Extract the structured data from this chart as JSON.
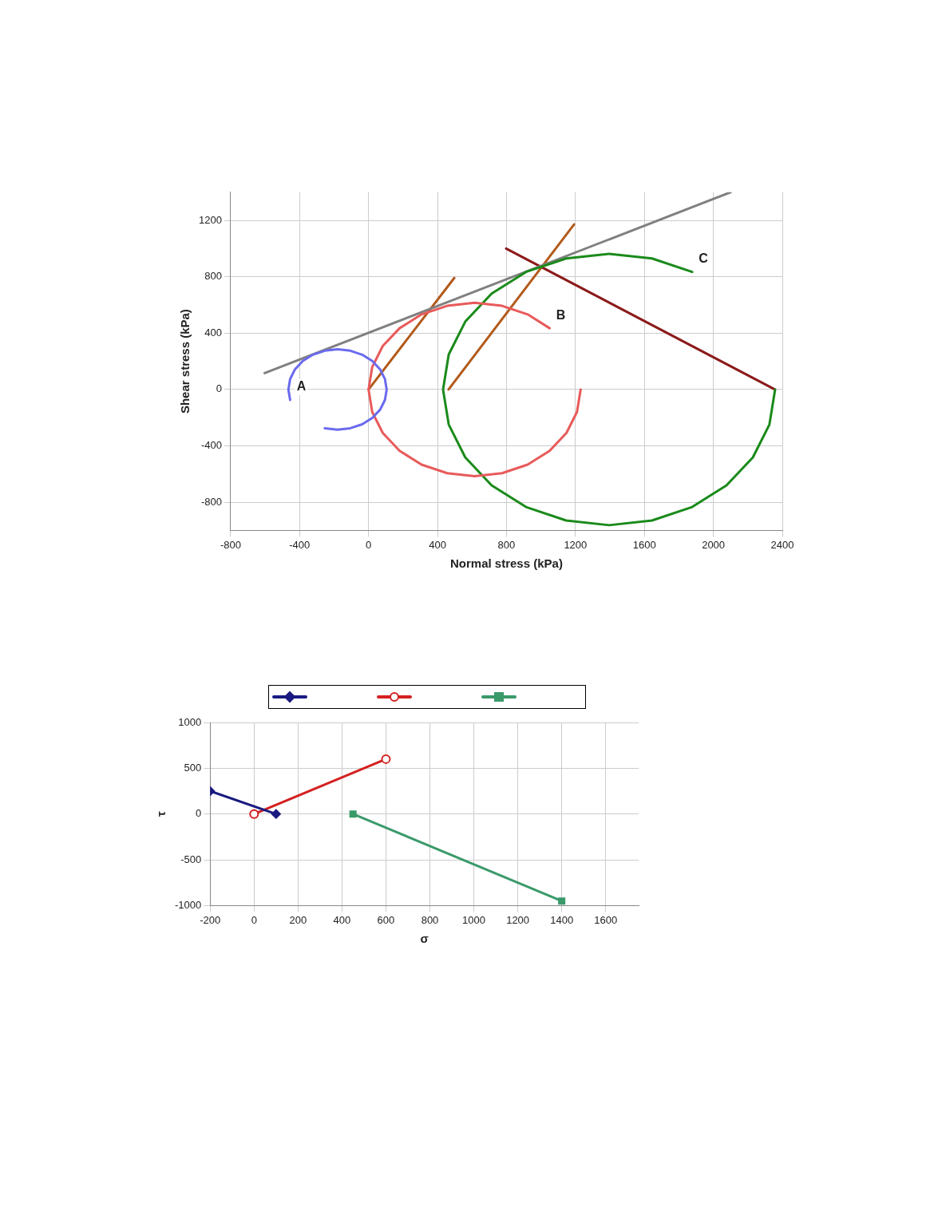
{
  "chart_data": [
    {
      "type": "scatter",
      "xlabel": "Normal stress (kPa)",
      "ylabel": "Shear stress (kPa)",
      "xlim": [
        -800,
        2400
      ],
      "xticks": [
        -800,
        -400,
        0,
        400,
        800,
        1200,
        1600,
        2000,
        2400
      ],
      "ylim": [
        -1000,
        1400
      ],
      "yticks": [
        -800,
        -400,
        0,
        400,
        800,
        1200
      ],
      "grid": true,
      "marker": "none",
      "line_style": "solid",
      "annotations": [
        {
          "text": "A",
          "x": -455,
          "y": -74
        },
        {
          "text": "B",
          "x": 1050,
          "y": 435
        },
        {
          "text": "C",
          "x": 1877,
          "y": 834
        }
      ],
      "series": [
        {
          "type": "line",
          "color": "#6a6aee",
          "x": [
            -254,
            -180,
            -106,
            -37,
            22,
            67,
            95,
            105,
            95,
            67,
            22,
            -37,
            -106,
            -180,
            -254,
            -323,
            -382,
            -427,
            -455,
            -465,
            -455
          ],
          "values": [
            -275,
            -285,
            -275,
            -247,
            -202,
            -143,
            -74,
            0,
            74,
            143,
            202,
            247,
            275,
            285,
            275,
            247,
            202,
            143,
            74,
            0,
            -74
          ]
        },
        {
          "type": "line",
          "color": "#e85a5a",
          "x": [
            1050,
            923,
            774,
            615,
            456,
            307,
            180,
            82,
            21,
            0,
            21,
            82,
            180,
            307,
            456,
            615,
            774,
            923,
            1050,
            1148,
            1209,
            1230
          ],
          "values": [
            435,
            533,
            594,
            615,
            594,
            533,
            435,
            308,
            159,
            0,
            -159,
            -308,
            -435,
            -533,
            -594,
            -615,
            -594,
            -533,
            -435,
            -308,
            -159,
            0
          ]
        },
        {
          "type": "line",
          "color": "#1a8a1a",
          "x": [
            1877,
            1644,
            1395,
            1146,
            913,
            714,
            561,
            465,
            432,
            465,
            561,
            714,
            913,
            1146,
            1395,
            1644,
            1877,
            2076,
            2229,
            2325,
            2358
          ],
          "values": [
            834,
            930,
            963,
            930,
            834,
            681,
            482,
            249,
            0,
            -249,
            -482,
            -681,
            -834,
            -930,
            -963,
            -930,
            -834,
            -681,
            -482,
            -249,
            0
          ]
        },
        {
          "type": "line",
          "color": "#808080",
          "x": [
            -603,
            2100
          ],
          "values": [
            116,
            1400
          ]
        },
        {
          "type": "line",
          "color": "#b35a1a",
          "x": [
            464,
            1192
          ],
          "values": [
            0,
            1172
          ]
        },
        {
          "type": "line",
          "color": "#b35a1a",
          "x": [
            0,
            497
          ],
          "values": [
            0,
            791
          ]
        },
        {
          "type": "line",
          "color": "#8b1a1a",
          "x": [
            798,
            2357
          ],
          "values": [
            1000,
            0
          ]
        }
      ]
    },
    {
      "type": "scatter",
      "xlabel": "σ",
      "ylabel": "τ",
      "xlim": [
        -200,
        1750
      ],
      "xticks": [
        -200,
        0,
        200,
        400,
        600,
        800,
        1000,
        1200,
        1400,
        1600
      ],
      "ylim": [
        -1000,
        1000
      ],
      "yticks": [
        -1000,
        -500,
        0,
        500,
        1000
      ],
      "grid": true,
      "line_style": "solid",
      "series": [
        {
          "type": "line",
          "marker": "diamond",
          "color": "#1a1a80",
          "x": [
            -200,
            100
          ],
          "values": [
            250,
            0
          ]
        },
        {
          "type": "line",
          "marker": "circle",
          "color": "#d42020",
          "x": [
            0,
            600
          ],
          "values": [
            0,
            600
          ]
        },
        {
          "type": "line",
          "marker": "square",
          "color": "#3a9a6a",
          "x": [
            450,
            1400
          ],
          "values": [
            0,
            -950
          ]
        }
      ]
    }
  ]
}
